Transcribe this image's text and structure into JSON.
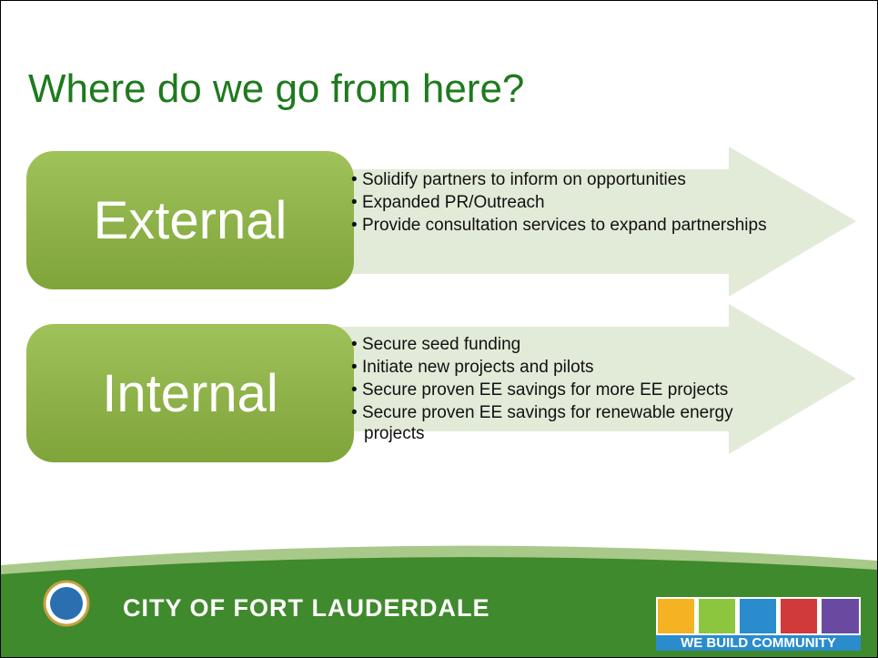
{
  "title": "Where do we go from here?",
  "sections": [
    {
      "label": "External",
      "bullets": [
        "Solidify partners to inform on opportunities",
        "Expanded PR/Outreach",
        "Provide consultation services to expand partnerships"
      ]
    },
    {
      "label": "Internal",
      "bullets": [
        "Secure seed funding",
        "Initiate new projects and pilots",
        "Secure proven EE savings for more EE projects",
        "Secure proven EE savings for renewable energy projects"
      ]
    }
  ],
  "footer": {
    "city": "CITY OF FORT LAUDERDALE",
    "tagline": "WE BUILD COMMUNITY"
  }
}
